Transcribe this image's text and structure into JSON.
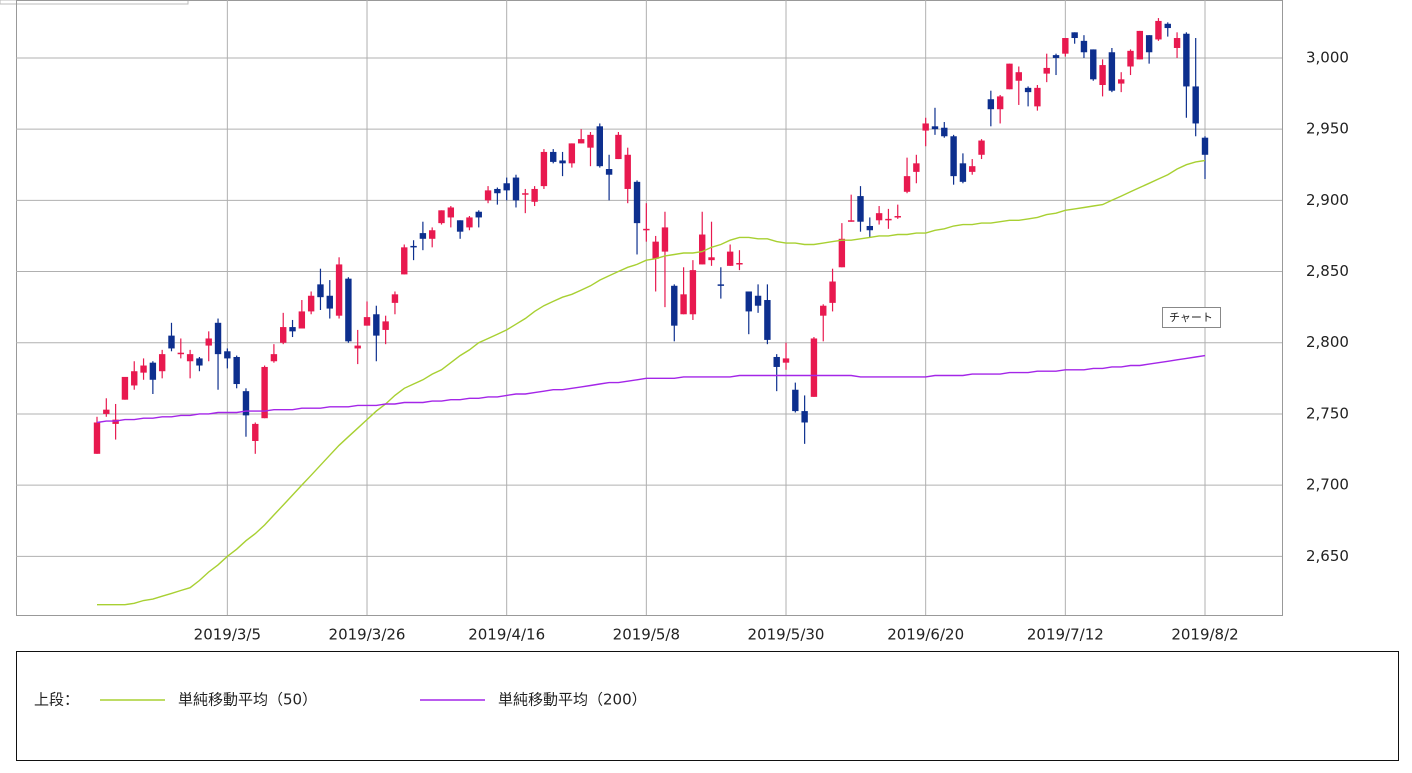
{
  "chart_data": {
    "type": "candlestick",
    "categories": [
      null,
      null,
      null,
      null,
      null,
      null,
      null,
      null,
      null,
      null,
      null,
      null,
      null,
      null,
      "2019/3/5",
      null,
      null,
      null,
      null,
      null,
      null,
      null,
      null,
      null,
      null,
      null,
      null,
      null,
      null,
      "2019/3/26",
      null,
      null,
      null,
      null,
      null,
      null,
      null,
      null,
      null,
      null,
      null,
      null,
      null,
      null,
      "2019/4/16",
      null,
      null,
      null,
      null,
      null,
      null,
      null,
      null,
      null,
      null,
      null,
      null,
      null,
      null,
      "2019/5/8",
      null,
      null,
      null,
      null,
      null,
      null,
      null,
      null,
      null,
      null,
      null,
      null,
      null,
      null,
      "2019/5/30",
      null,
      null,
      null,
      null,
      null,
      null,
      null,
      null,
      null,
      null,
      null,
      null,
      null,
      null,
      "2019/6/20",
      null,
      null,
      null,
      null,
      null,
      null,
      null,
      null,
      null,
      null,
      null,
      null,
      null,
      null,
      "2019/7/12",
      null,
      null,
      null,
      null,
      null,
      null,
      null,
      null,
      null,
      null,
      null,
      null,
      null,
      null,
      "2019/8/2"
    ],
    "open": [
      2722,
      2750,
      2743,
      2760,
      2770,
      2779,
      2786,
      2780,
      2805,
      2792,
      2787,
      2789,
      2798,
      2814,
      2794,
      2790,
      2766,
      2731,
      2747,
      2787,
      2800,
      2811,
      2810,
      2822,
      2841,
      2833,
      2819,
      2845,
      2796,
      2812,
      2820,
      2809,
      2828,
      2848,
      2868,
      2877,
      2873,
      2884,
      2888,
      2886,
      2881,
      2892,
      2900,
      2908,
      2912,
      2916,
      2904,
      2899,
      2910,
      2934,
      2928,
      2926,
      2940,
      2937,
      2952,
      2922,
      2929,
      2908,
      2913,
      2880,
      2859,
      2864,
      2840,
      2820,
      2820,
      2855,
      2858,
      2841,
      2854,
      2856,
      2836,
      2833,
      2830,
      2790,
      2786,
      2767,
      2752,
      2762,
      2819,
      2828,
      2853,
      2885,
      2903,
      2882,
      2886,
      2887,
      2889,
      2906,
      2920,
      2949,
      2952,
      2951,
      2945,
      2926,
      2920,
      2932,
      2971,
      2964,
      2978,
      2984,
      2979,
      2966,
      2989,
      3002,
      3003,
      3018,
      3012,
      3006,
      2981,
      3004,
      2982,
      2994,
      2999,
      3016,
      3013,
      3024,
      3007,
      3017,
      2980,
      2944
    ],
    "high": [
      2748,
      2761,
      2757,
      2775,
      2787,
      2789,
      2787,
      2795,
      2814,
      2803,
      2795,
      2790,
      2808,
      2817,
      2796,
      2791,
      2768,
      2744,
      2784,
      2799,
      2821,
      2816,
      2830,
      2836,
      2852,
      2844,
      2860,
      2846,
      2809,
      2829,
      2826,
      2819,
      2836,
      2869,
      2872,
      2885,
      2881,
      2893,
      2896,
      2886,
      2889,
      2893,
      2910,
      2909,
      2916,
      2918,
      2908,
      2910,
      2936,
      2936,
      2934,
      2940,
      2950,
      2948,
      2954,
      2932,
      2948,
      2937,
      2914,
      2898,
      2875,
      2892,
      2841,
      2853,
      2858,
      2892,
      2885,
      2853,
      2869,
      2865,
      2836,
      2841,
      2841,
      2792,
      2800,
      2772,
      2763,
      2804,
      2827,
      2852,
      2884,
      2904,
      2910,
      2888,
      2896,
      2894,
      2897,
      2930,
      2932,
      2958,
      2965,
      2955,
      2946,
      2933,
      2929,
      2943,
      2977,
      2974,
      2996,
      2994,
      2980,
      2981,
      3003,
      3003,
      3014,
      3018,
      3016,
      3006,
      2999,
      3007,
      2990,
      3006,
      3019,
      3016,
      3028,
      3025,
      3018,
      3018,
      3014,
      2945
    ],
    "low": [
      2722,
      2748,
      2732,
      2760,
      2767,
      2774,
      2764,
      2775,
      2794,
      2789,
      2775,
      2780,
      2787,
      2767,
      2782,
      2768,
      2734,
      2722,
      2747,
      2786,
      2799,
      2804,
      2810,
      2820,
      2823,
      2817,
      2817,
      2800,
      2785,
      2812,
      2787,
      2799,
      2820,
      2848,
      2858,
      2865,
      2867,
      2883,
      2881,
      2873,
      2879,
      2881,
      2898,
      2897,
      2900,
      2895,
      2891,
      2896,
      2908,
      2926,
      2917,
      2923,
      2940,
      2924,
      2923,
      2900,
      2929,
      2898,
      2862,
      2871,
      2836,
      2825,
      2801,
      2820,
      2816,
      2855,
      2854,
      2831,
      2854,
      2851,
      2806,
      2821,
      2799,
      2766,
      2781,
      2751,
      2729,
      2762,
      2801,
      2822,
      2853,
      2885,
      2878,
      2874,
      2883,
      2880,
      2887,
      2905,
      2912,
      2938,
      2946,
      2944,
      2911,
      2912,
      2918,
      2929,
      2952,
      2954,
      2978,
      2967,
      2966,
      2963,
      2983,
      2988,
      3001,
      3010,
      3000,
      2984,
      2973,
      2976,
      2976,
      2988,
      2999,
      2996,
      3012,
      3015,
      3000,
      2958,
      2945,
      2915
    ],
    "close": [
      2744,
      2753,
      2746,
      2776,
      2780,
      2784,
      2774,
      2792,
      2796,
      2793,
      2792,
      2784,
      2803,
      2792,
      2789,
      2771,
      2749,
      2743,
      2783,
      2792,
      2811,
      2808,
      2822,
      2833,
      2832,
      2824,
      2855,
      2801,
      2798,
      2818,
      2805,
      2815,
      2834,
      2867,
      2867,
      2873,
      2879,
      2893,
      2895,
      2878,
      2888,
      2888,
      2907,
      2905,
      2907,
      2900,
      2905,
      2908,
      2934,
      2927,
      2926,
      2940,
      2943,
      2946,
      2924,
      2918,
      2946,
      2932,
      2884,
      2880,
      2871,
      2881,
      2812,
      2834,
      2851,
      2876,
      2860,
      2840,
      2864,
      2856,
      2822,
      2826,
      2802,
      2783,
      2789,
      2752,
      2744,
      2803,
      2826,
      2843,
      2873,
      2886,
      2885,
      2879,
      2891,
      2887,
      2889,
      2917,
      2926,
      2954,
      2950,
      2945,
      2917,
      2913,
      2924,
      2942,
      2964,
      2973,
      2996,
      2990,
      2976,
      2979,
      2993,
      3000,
      3014,
      3014,
      3004,
      2985,
      2995,
      2977,
      2985,
      3005,
      3019,
      3004,
      3026,
      3021,
      3014,
      2980,
      2954,
      2932
    ],
    "up_color": "#e8194f",
    "down_color": "#0d2f8e",
    "series": [
      {
        "name": "単純移動平均（50）",
        "color": "#a8d032",
        "values": [
          2616,
          2616,
          2616,
          2616,
          2617,
          2619,
          2620,
          2622,
          2624,
          2626,
          2628,
          2633,
          2639,
          2644,
          2650,
          2655,
          2661,
          2666,
          2672,
          2679,
          2686,
          2693,
          2700,
          2707,
          2714,
          2721,
          2728,
          2734,
          2740,
          2746,
          2752,
          2757,
          2763,
          2768,
          2771,
          2774,
          2778,
          2781,
          2786,
          2791,
          2795,
          2800,
          2803,
          2806,
          2809,
          2813,
          2817,
          2822,
          2826,
          2829,
          2832,
          2834,
          2837,
          2840,
          2844,
          2847,
          2850,
          2853,
          2855,
          2858,
          2859,
          2861,
          2862,
          2863,
          2863,
          2864,
          2867,
          2869,
          2872,
          2874,
          2874,
          2873,
          2873,
          2871,
          2870,
          2870,
          2869,
          2869,
          2870,
          2871,
          2872,
          2872,
          2873,
          2874,
          2875,
          2875,
          2876,
          2876,
          2877,
          2877,
          2879,
          2880,
          2882,
          2883,
          2883,
          2884,
          2884,
          2885,
          2886,
          2886,
          2887,
          2888,
          2890,
          2891,
          2893,
          2894,
          2895,
          2896,
          2897,
          2900,
          2903,
          2906,
          2909,
          2912,
          2915,
          2918,
          2922,
          2925,
          2927,
          2928
        ]
      },
      {
        "name": "単純移動平均（200）",
        "color": "#a426e8",
        "values": [
          2744,
          2745,
          2745,
          2746,
          2746,
          2747,
          2747,
          2748,
          2748,
          2749,
          2749,
          2750,
          2750,
          2751,
          2751,
          2751,
          2752,
          2752,
          2752,
          2753,
          2753,
          2753,
          2754,
          2754,
          2754,
          2755,
          2755,
          2755,
          2756,
          2756,
          2756,
          2757,
          2757,
          2758,
          2758,
          2758,
          2759,
          2759,
          2760,
          2760,
          2761,
          2761,
          2762,
          2762,
          2763,
          2764,
          2764,
          2765,
          2766,
          2767,
          2767,
          2768,
          2769,
          2770,
          2771,
          2772,
          2772,
          2773,
          2774,
          2775,
          2775,
          2775,
          2775,
          2776,
          2776,
          2776,
          2776,
          2776,
          2776,
          2777,
          2777,
          2777,
          2777,
          2777,
          2777,
          2777,
          2777,
          2777,
          2777,
          2777,
          2777,
          2777,
          2776,
          2776,
          2776,
          2776,
          2776,
          2776,
          2776,
          2776,
          2777,
          2777,
          2777,
          2777,
          2778,
          2778,
          2778,
          2778,
          2779,
          2779,
          2779,
          2780,
          2780,
          2780,
          2781,
          2781,
          2781,
          2782,
          2782,
          2783,
          2783,
          2784,
          2784,
          2785,
          2786,
          2787,
          2788,
          2789,
          2790,
          2791
        ]
      }
    ],
    "ylim": [
      2608.8,
      3040.7
    ],
    "yticks": [
      {
        "value": 2650,
        "label": "2,650"
      },
      {
        "value": 2700,
        "label": "2,700"
      },
      {
        "value": 2750,
        "label": "2,750"
      },
      {
        "value": 2800,
        "label": "2,800"
      },
      {
        "value": 2850,
        "label": "2,850"
      },
      {
        "value": 2900,
        "label": "2,900"
      },
      {
        "value": 2950,
        "label": "2,950"
      },
      {
        "value": 3000,
        "label": "3,000"
      }
    ],
    "grid": true,
    "legend_label": "上段：",
    "tooltip": "チャート"
  }
}
